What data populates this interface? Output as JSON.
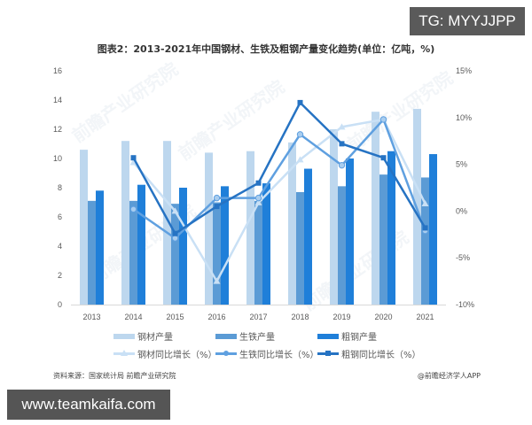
{
  "badge_top": "TG: MYYJJPP",
  "badge_bottom": "www.teamkaifa.com",
  "title": "图表2：2013-2021年中国钢材、生铁及粗钢产量变化趋势(单位：亿吨，%)",
  "source": "资料来源：国家统计局 前瞻产业研究院",
  "credit": "@前瞻经济学人APP",
  "watermark": "前瞻产业研究院",
  "colors": {
    "steel_bar": "#BDD7EE",
    "pig_iron_bar": "#5B9BD5",
    "crude_steel_bar": "#1F7FD9",
    "steel_line": "#C9E0F5",
    "pig_iron_line": "#5FA0E0",
    "crude_steel_line": "#2673C3"
  },
  "legend": [
    {
      "label": "钢材产量",
      "type": "bar",
      "color_key": "steel_bar"
    },
    {
      "label": "生铁产量",
      "type": "bar",
      "color_key": "pig_iron_bar"
    },
    {
      "label": "粗钢产量",
      "type": "bar",
      "color_key": "crude_steel_bar"
    },
    {
      "label": "钢材同比增长（%）",
      "type": "line",
      "marker": "triangle",
      "color_key": "steel_line"
    },
    {
      "label": "生铁同比增长（%）",
      "type": "line",
      "marker": "circle",
      "color_key": "pig_iron_line"
    },
    {
      "label": "粗钢同比增长（%）",
      "type": "line",
      "marker": "square",
      "color_key": "crude_steel_line"
    }
  ],
  "chart_data": {
    "type": "bar+line",
    "title": "图表2：2013-2021年中国钢材、生铁及粗钢产量变化趋势(单位：亿吨，%)",
    "categories": [
      "2013",
      "2014",
      "2015",
      "2016",
      "2017",
      "2018",
      "2019",
      "2020",
      "2021"
    ],
    "y_left": {
      "label": "亿吨",
      "range": [
        0,
        16
      ],
      "ticks": [
        0,
        2,
        4,
        6,
        8,
        10,
        12,
        14,
        16
      ]
    },
    "y_right": {
      "label": "%",
      "range": [
        -10,
        15
      ],
      "ticks": [
        "-10%",
        "-5%",
        "0%",
        "5%",
        "10%",
        "15%"
      ],
      "tick_values": [
        -10,
        -5,
        0,
        5,
        10,
        15
      ]
    },
    "bar_series": [
      {
        "name": "钢材产量",
        "axis": "left",
        "values": [
          10.6,
          11.2,
          11.2,
          10.4,
          10.5,
          11.1,
          12.0,
          13.2,
          13.4
        ]
      },
      {
        "name": "生铁产量",
        "axis": "left",
        "values": [
          7.1,
          7.1,
          6.9,
          7.0,
          7.1,
          7.7,
          8.1,
          8.9,
          8.7
        ]
      },
      {
        "name": "粗钢产量",
        "axis": "left",
        "values": [
          7.8,
          8.2,
          8.0,
          8.1,
          8.3,
          9.3,
          10.0,
          10.5,
          10.3
        ]
      }
    ],
    "line_series": [
      {
        "name": "钢材同比增长（%）",
        "axis": "right",
        "values": [
          null,
          5.2,
          0.0,
          -7.5,
          0.9,
          5.5,
          9.0,
          9.8,
          0.8
        ]
      },
      {
        "name": "生铁同比增长（%）",
        "axis": "right",
        "values": [
          null,
          0.2,
          -2.9,
          1.4,
          1.4,
          8.2,
          4.9,
          9.8,
          -2.1
        ]
      },
      {
        "name": "粗钢同比增长（%）",
        "axis": "right",
        "values": [
          null,
          5.7,
          -2.4,
          0.5,
          3.0,
          11.6,
          7.2,
          5.7,
          -1.8
        ]
      }
    ],
    "grid": false,
    "legend_position": "bottom"
  }
}
